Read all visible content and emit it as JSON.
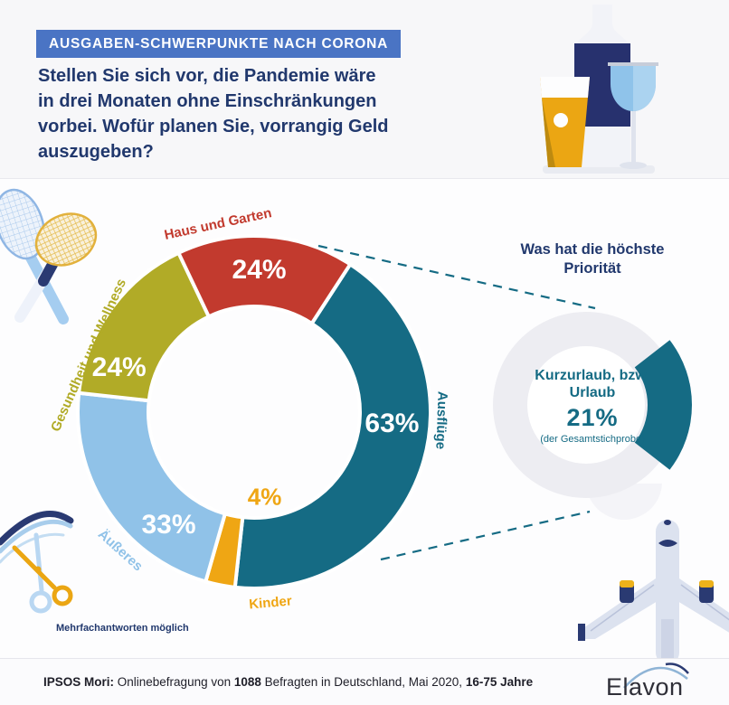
{
  "banner": {
    "label": "AUSGABEN-SCHWERPUNKTE NACH CORONA",
    "bg": "#4a74c4"
  },
  "headline": {
    "lines": [
      "Stellen Sie sich vor, die Pandemie wäre",
      "in drei Monaten ohne Einschränkungen",
      "vorbei. Wofür planen Sie, vorrangig Geld",
      "auszugeben?"
    ],
    "color": "#21386d"
  },
  "chart_data": {
    "type": "donut",
    "title": "Ausgaben-Schwerpunkte nach Corona",
    "question": "Wofür planen Sie, vorrangig Geld auszugeben?",
    "note": "Mehrfachantworten möglich",
    "unit": "%",
    "start_angle_deg": 33,
    "gap_stroke": "#ffffff",
    "segments": [
      {
        "label": "Ausflüge",
        "value": 63,
        "color": "#156b84",
        "value_pos": {
          "angle": 95,
          "r": 153,
          "size": 30,
          "color": "#ffffff"
        },
        "label_pos": {
          "angle": 92.5,
          "r": 207,
          "rot": 92
        }
      },
      {
        "label": "Kinder",
        "value": 4,
        "color": "#efa614",
        "value_pos": {
          "angle": 173,
          "r": 95,
          "size": 26,
          "color": "#efa614"
        },
        "label_pos": {
          "angle": 175,
          "r": 212,
          "rot": -5
        }
      },
      {
        "label": "Äußeres",
        "value": 33,
        "color": "#90c2e8",
        "value_pos": {
          "angle": 217,
          "r": 157,
          "size": 30,
          "color": "#ffffff"
        },
        "label_pos": {
          "angle": 224,
          "r": 213,
          "rot": 42
        }
      },
      {
        "label": "Gesundheit und Wellness",
        "value": 24,
        "color": "#b1ab27",
        "value_pos": {
          "angle": 288,
          "r": 157,
          "size": 30,
          "color": "#ffffff"
        },
        "label_pos": {
          "angle": 289,
          "r": 194,
          "rot": -66
        }
      },
      {
        "label": "Haus und Garten",
        "value": 24,
        "color": "#c23a2e",
        "value_pos": {
          "angle": 2,
          "r": 157,
          "size": 30,
          "color": "#ffffff"
        },
        "label_pos": {
          "angle": 349,
          "r": 212,
          "rot": -12
        }
      }
    ],
    "zoom_lines": [
      [
        352,
        272,
        658,
        341
      ],
      [
        421,
        619,
        652,
        566
      ]
    ],
    "detail": {
      "heading": "Was hat die höchste Priorität",
      "label": "Kurzurlaub, bzw. Urlaub",
      "value": 21,
      "value_text": "21%",
      "subnote": "(der Gesamtstichprobe)",
      "color": "#156b84",
      "ring_color": "#ededf2"
    }
  },
  "footnote": "Mehrfachantworten möglich",
  "footer": {
    "parts": [
      {
        "text": "IPSOS Mori:",
        "bold": true
      },
      {
        "text": " Onlinebefragung von ",
        "bold": false
      },
      {
        "text": "1088",
        "bold": true
      },
      {
        "text": " Befragten in Deutschland, Mai 2020, ",
        "bold": false
      },
      {
        "text": "16-75 Jahre",
        "bold": true
      }
    ]
  },
  "logo": {
    "text": "Elavon"
  },
  "icons": [
    "drinks-icon",
    "tennis-rackets-icon",
    "scissors-haircut-icon",
    "airplane-icon"
  ]
}
